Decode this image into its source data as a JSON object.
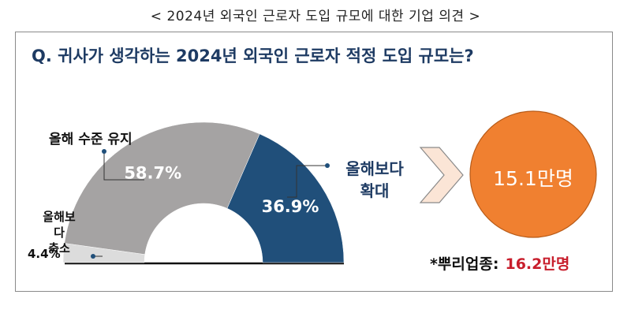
{
  "page": {
    "title": "< 2024년 외국인 근로자 도입 규모에 대한 기업 의견 >",
    "question": "Q. 귀사가 생각하는 2024년 외국인 근로자 적정 도입 규모는?"
  },
  "chart_data": {
    "type": "pie",
    "shape": "half-donut",
    "title": "",
    "slices": [
      {
        "label": "올해보다 축소",
        "value": 4.4,
        "value_label": "4.4%",
        "color": "#dcdcdc"
      },
      {
        "label": "올해 수준 유지",
        "value": 58.7,
        "value_label": "58.7%",
        "color": "#a5a3a3"
      },
      {
        "label": "올해보다 확대",
        "value": 36.9,
        "value_label": "36.9%",
        "color": "#204f7a"
      }
    ]
  },
  "labels": {
    "keep": "올해 수준 유지",
    "reduce_line1": "올해보다",
    "reduce_line2": "축소",
    "reduce_pct": "4.4%",
    "expand_line1": "올해보다",
    "expand_line2": "확대"
  },
  "result": {
    "circle_value": "15.1만명",
    "circle_color": "#f08030",
    "arrow_color": "#fbe5d6",
    "note_label": "*뿌리업종:",
    "note_value": "16.2만명"
  }
}
